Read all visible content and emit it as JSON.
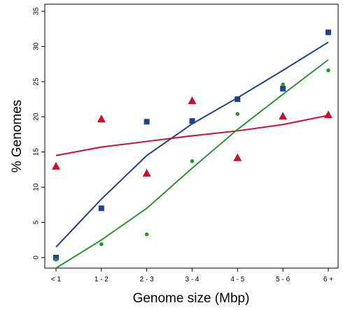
{
  "chart_data": {
    "type": "scatter",
    "title": "",
    "xlabel": "Genome size (Mbp)",
    "ylabel": "% Genomes",
    "categories": [
      "< 1",
      "1 - 2",
      "2 - 3",
      "3 - 4",
      "4 - 5",
      "5 - 6",
      "6 +"
    ],
    "ylim": [
      -1.5,
      36
    ],
    "yticks": [
      0,
      5,
      10,
      15,
      20,
      25,
      30,
      35
    ],
    "grid": false,
    "legend": "none",
    "series": [
      {
        "marker": "square",
        "color": "#1f3f8f",
        "points": [
          0.0,
          7.0,
          19.3,
          19.4,
          22.5,
          24.0,
          32.0
        ],
        "trend": [
          1.5,
          8.3,
          14.5,
          19.0,
          22.7,
          26.6,
          30.6
        ]
      },
      {
        "marker": "triangle",
        "color": "#c8102e",
        "points": [
          13.0,
          19.7,
          12.0,
          22.3,
          14.2,
          20.1,
          20.3
        ],
        "trend": [
          14.5,
          15.7,
          16.5,
          17.3,
          18.0,
          18.9,
          20.2
        ]
      },
      {
        "marker": "circle",
        "color": "#2a9432",
        "points": [
          -0.3,
          1.9,
          3.3,
          13.7,
          20.4,
          24.6,
          26.6
        ],
        "trend": [
          -1.5,
          2.5,
          7.0,
          12.7,
          18.2,
          23.2,
          28.1
        ]
      }
    ]
  }
}
